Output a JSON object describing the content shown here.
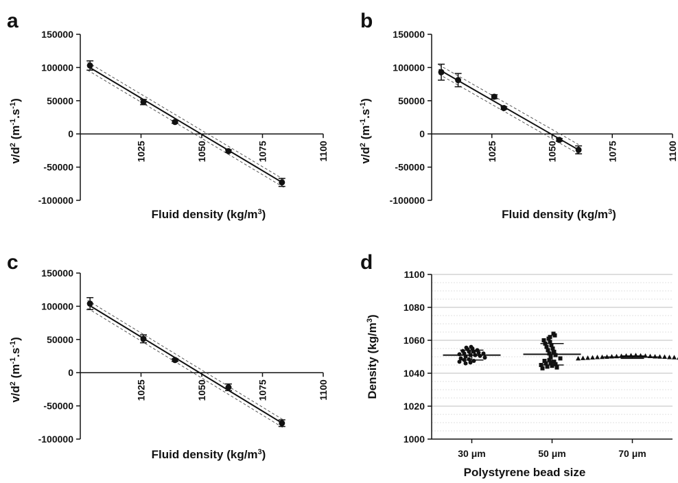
{
  "chart_data": [
    {
      "panel": "a",
      "type": "scatter",
      "xlabel": "Fluid density (kg/m³)",
      "ylabel": "v/d² (m⁻¹.s⁻¹)",
      "xlim": [
        1000,
        1100
      ],
      "ylim": [
        -100000,
        150000
      ],
      "x_ticks": [
        "1025",
        "1050",
        "1075",
        "1100"
      ],
      "y_ticks": [
        "150000",
        "100000",
        "50000",
        "0",
        "-50000",
        "-100000"
      ],
      "points": [
        {
          "x": 1004,
          "y": 103000,
          "err": 7000
        },
        {
          "x": 1026,
          "y": 48000,
          "err": 4000
        },
        {
          "x": 1039,
          "y": 18000,
          "err": 2000
        },
        {
          "x": 1061,
          "y": -26000,
          "err": 2000
        },
        {
          "x": 1083,
          "y": -73000,
          "err": 6000
        }
      ],
      "fit": {
        "x": [
          1003,
          1084
        ],
        "y": [
          102000,
          -75000
        ]
      },
      "ci_upper": {
        "x": [
          1003,
          1084
        ],
        "y": [
          108000,
          -69000
        ]
      },
      "ci_lower": {
        "x": [
          1003,
          1084
        ],
        "y": [
          96000,
          -81000
        ]
      }
    },
    {
      "panel": "b",
      "type": "scatter",
      "xlabel": "Fluid density (kg/m³)",
      "ylabel": "v/d² (m⁻¹.s⁻¹)",
      "xlim": [
        1000,
        1100
      ],
      "ylim": [
        -100000,
        150000
      ],
      "x_ticks": [
        "1025",
        "1050",
        "1075",
        "1100"
      ],
      "y_ticks": [
        "150000",
        "100000",
        "50000",
        "0",
        "-50000",
        "-100000"
      ],
      "points": [
        {
          "x": 1004,
          "y": 93000,
          "err": 12000
        },
        {
          "x": 1011,
          "y": 81000,
          "err": 10000
        },
        {
          "x": 1026,
          "y": 56000,
          "err": 3000
        },
        {
          "x": 1030,
          "y": 39000,
          "err": 2000
        },
        {
          "x": 1053,
          "y": -9000,
          "err": 2000
        },
        {
          "x": 1061,
          "y": -24000,
          "err": 6000
        }
      ],
      "fit": {
        "x": [
          1003,
          1061
        ],
        "y": [
          97000,
          -24000
        ]
      },
      "ci_upper": {
        "x": [
          1003,
          1061
        ],
        "y": [
          104000,
          -16000
        ]
      },
      "ci_lower": {
        "x": [
          1003,
          1061
        ],
        "y": [
          90000,
          -30000
        ]
      }
    },
    {
      "panel": "c",
      "type": "scatter",
      "xlabel": "Fluid density (kg/m³)",
      "ylabel": "v/d² (m⁻¹.s⁻¹)",
      "xlim": [
        1000,
        1100
      ],
      "ylim": [
        -100000,
        150000
      ],
      "x_ticks": [
        "1025",
        "1050",
        "1075",
        "1100"
      ],
      "y_ticks": [
        "150000",
        "100000",
        "50000",
        "0",
        "-50000",
        "-100000"
      ],
      "points": [
        {
          "x": 1004,
          "y": 104000,
          "err": 9000
        },
        {
          "x": 1026,
          "y": 51000,
          "err": 6000
        },
        {
          "x": 1039,
          "y": 19000,
          "err": 2000
        },
        {
          "x": 1061,
          "y": -22000,
          "err": 5000
        },
        {
          "x": 1083,
          "y": -76000,
          "err": 5000
        }
      ],
      "fit": {
        "x": [
          1003,
          1084
        ],
        "y": [
          103000,
          -78000
        ]
      },
      "ci_upper": {
        "x": [
          1003,
          1084
        ],
        "y": [
          109000,
          -72000
        ]
      },
      "ci_lower": {
        "x": [
          1003,
          1084
        ],
        "y": [
          97000,
          -84000
        ]
      }
    },
    {
      "panel": "d",
      "type": "scatter",
      "xlabel": "Polystyrene bead size",
      "ylabel": "Density (kg/m³)",
      "ylim": [
        1000,
        1100
      ],
      "y_ticks": [
        "1100",
        "1080",
        "1060",
        "1040",
        "1020",
        "1000"
      ],
      "categories": [
        "30 μm",
        "50 μm",
        "70 μm"
      ],
      "grid": true,
      "groups": [
        {
          "name": "30 μm",
          "mean": 1051,
          "sd_upper": 1054,
          "sd_lower": 1048,
          "values": [
            1056,
            1055.5,
            1055,
            1054.5,
            1054,
            1053.5,
            1053,
            1053,
            1052.5,
            1052,
            1052,
            1051.5,
            1051,
            1051,
            1050.5,
            1050,
            1049.5,
            1049,
            1048.5,
            1048,
            1047.5,
            1047,
            1046.5,
            1046
          ]
        },
        {
          "name": "50 μm",
          "mean": 1051.5,
          "sd_upper": 1058,
          "sd_lower": 1045,
          "values": [
            1064,
            1063,
            1062,
            1061,
            1060,
            1059,
            1058,
            1057,
            1056,
            1055,
            1054,
            1053,
            1052,
            1051,
            1050,
            1049,
            1048,
            1047.5,
            1047,
            1046.5,
            1046,
            1045.5,
            1045,
            1044.5,
            1044,
            1043.5,
            1043
          ]
        },
        {
          "name": "70 μm",
          "mean": 1049.8,
          "sd_upper": 1050.5,
          "sd_lower": 1049,
          "values": [
            1051,
            1050.8,
            1050.6,
            1050.4,
            1050.2,
            1050,
            1050,
            1049.8,
            1049.6,
            1049.4,
            1049.2,
            1049,
            1050.3,
            1049.7,
            1050.5,
            1049.5,
            1050.1,
            1049.9,
            1050.7,
            1049.3,
            1050.9,
            1049.1,
            1050.2,
            1049.8
          ]
        }
      ]
    }
  ]
}
